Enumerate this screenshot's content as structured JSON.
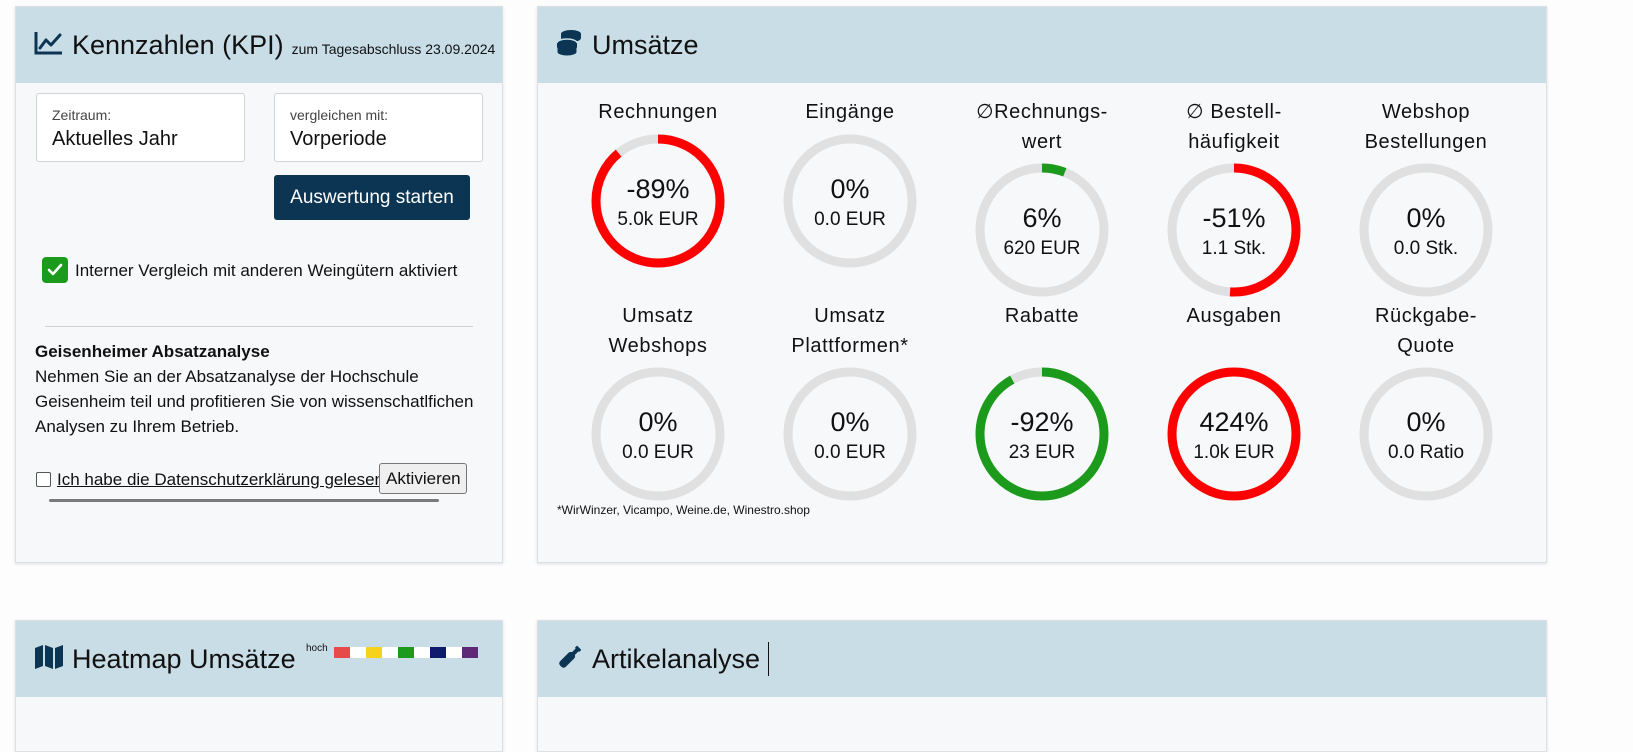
{
  "kpi_card": {
    "title": "Kennzahlen (KPI)",
    "subtitle": "zum Tagesabschluss 23.09.2024",
    "period_label": "Zeitraum:",
    "period_value": "Aktuelles Jahr",
    "compare_label": "vergleichen mit:",
    "compare_value": "Vorperiode",
    "start_button": "Auswertung starten",
    "internal_compare_text": "Interner Vergleich mit anderen Weingütern aktiviert",
    "analysis_heading": "Geisenheimer Absatzanalyse",
    "analysis_line1": "Nehmen Sie an der Absatzanalyse der Hochschule",
    "analysis_line2": "Geisenheim teil und profitieren Sie von wissenschatlfichen",
    "analysis_line3": "Analysen zu Ihrem Betrieb.",
    "privacy_link": "Ich habe die Datenschutzerklärung gelesen",
    "activate_button": "Aktivieren"
  },
  "umsatz_card": {
    "title": "Umsätze",
    "footnote": "*WirWinzer, Vicampo, Weine.de, Winestro.shop",
    "kpis": [
      {
        "label1": "Rechnungen",
        "label2": "",
        "pct": "-89%",
        "amount": "5.0k EUR",
        "fill": 0.89,
        "color": "#ff0000"
      },
      {
        "label1": "Eingänge",
        "label2": "",
        "pct": "0%",
        "amount": "0.0 EUR",
        "fill": 0,
        "color": "#ff0000"
      },
      {
        "label1": "∅Rechnungs-",
        "label2": "wert",
        "pct": "6%",
        "amount": "620 EUR",
        "fill": 0.06,
        "color": "#1c9a1c"
      },
      {
        "label1": "∅ Bestell-",
        "label2": "häufigkeit",
        "pct": "-51%",
        "amount": "1.1 Stk.",
        "fill": 0.51,
        "color": "#ff0000"
      },
      {
        "label1": "Webshop",
        "label2": "Bestellungen",
        "pct": "0%",
        "amount": "0.0 Stk.",
        "fill": 0,
        "color": "#ff0000"
      },
      {
        "label1": "Umsatz",
        "label2": "Webshops",
        "pct": "0%",
        "amount": "0.0 EUR",
        "fill": 0,
        "color": "#ff0000"
      },
      {
        "label1": "Umsatz",
        "label2": "Plattformen*",
        "pct": "0%",
        "amount": "0.0 EUR",
        "fill": 0,
        "color": "#ff0000"
      },
      {
        "label1": "Rabatte",
        "label2": "",
        "pct": "-92%",
        "amount": "23 EUR",
        "fill": 0.92,
        "color": "#1c9a1c"
      },
      {
        "label1": "Ausgaben",
        "label2": "",
        "pct": "424%",
        "amount": "1.0k EUR",
        "fill": 1,
        "color": "#ff0000"
      },
      {
        "label1": "Rückgabe-",
        "label2": "Quote",
        "pct": "0%",
        "amount": "0.0 Ratio",
        "fill": 0,
        "color": "#ff0000"
      }
    ]
  },
  "heatmap_card": {
    "title": "Heatmap Umsätze",
    "legend_label": "hoch",
    "legend_colors": [
      "#e84a4a",
      "#ffffff",
      "#f5d21c",
      "#ffffff",
      "#1c9a1c",
      "#ffffff",
      "#0e1a6b",
      "#ffffff",
      "#5e2a78"
    ]
  },
  "article_card": {
    "title": "Artikelanalyse"
  }
}
